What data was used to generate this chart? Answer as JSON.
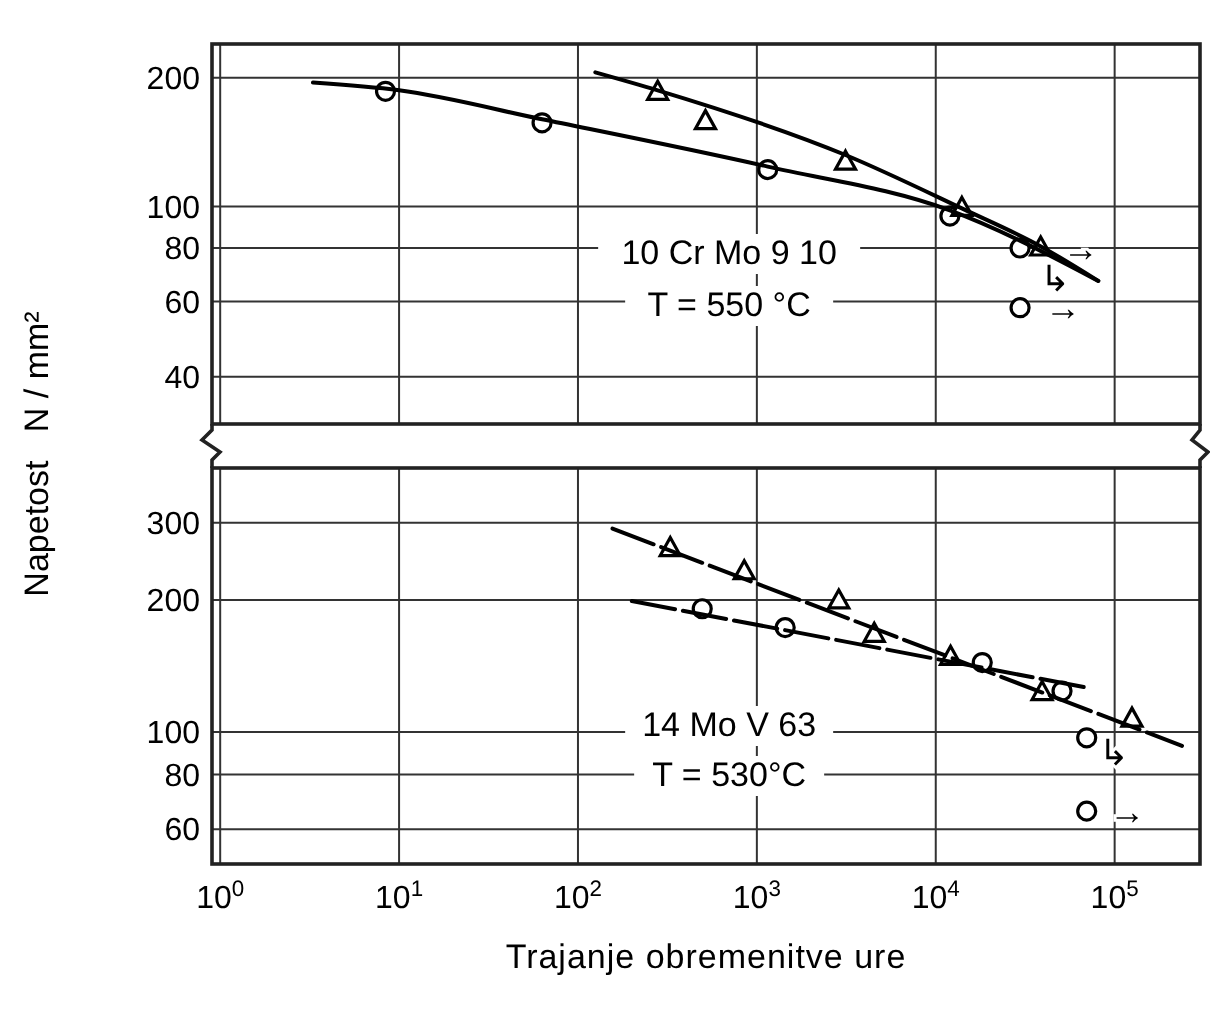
{
  "chart_data": [
    {
      "type": "scatter",
      "ylabel": "Napetost   N / mm²",
      "xlim": [
        0.9,
        300000
      ],
      "xticks": [
        {
          "value": 1,
          "label": null
        },
        {
          "value": 10,
          "label": null
        },
        {
          "value": 100,
          "label": null
        },
        {
          "value": 1000,
          "label": null
        },
        {
          "value": 10000,
          "label": null
        },
        {
          "value": 100000,
          "label": null
        }
      ],
      "ylim": [
        31,
        240
      ],
      "yticks": [
        40,
        60,
        80,
        100,
        200
      ],
      "log": "xy",
      "grid": true,
      "tick_labels": "y",
      "annotations": [
        "10 Cr Mo 9 10",
        "T = 550 °C",
        {
          "text": "→",
          "x": 44000,
          "y": 80
        },
        "↳",
        {
          "text": "→",
          "x": 35000,
          "y": 58
        }
      ],
      "series": [
        {
          "type": "scatter",
          "marker": "circle",
          "color": "#000000",
          "x": [
            8.4,
            63,
            1150,
            12000,
            29600,
            29600
          ],
          "values": [
            186,
            157,
            122,
            95,
            80,
            58
          ]
        },
        {
          "type": "scatter",
          "marker": "triangle",
          "color": "#000000",
          "x": [
            279,
            516,
            3130,
            14000,
            38600
          ],
          "values": [
            185,
            158,
            127,
            99,
            80
          ]
        },
        {
          "type": "line",
          "marker": "none",
          "line_style": "solid",
          "color": "#000000",
          "x": [
            3.3,
            10,
            63,
            1150,
            12000,
            81000
          ],
          "values": [
            195,
            187,
            160,
            124,
            98,
            67
          ]
        },
        {
          "type": "line",
          "marker": "none",
          "line_style": "solid",
          "color": "#000000",
          "x": [
            125,
            279,
            3130,
            14000,
            38000,
            81000
          ],
          "values": [
            206,
            187,
            132,
            99,
            81,
            67
          ]
        }
      ]
    },
    {
      "type": "scatter",
      "xlabel": "Trajanje  obremenitve  ure",
      "xlim": [
        0.9,
        300000
      ],
      "xticks": [
        {
          "value": 1,
          "label": "10$^{0}$"
        },
        {
          "value": 10,
          "label": "10$^{1}$"
        },
        {
          "value": 100,
          "label": "10$^{2}$"
        },
        {
          "value": 1000,
          "label": "10$^{3}$"
        },
        {
          "value": 10000,
          "label": "10$^{4}$"
        },
        {
          "value": 100000,
          "label": "10$^{5}$"
        }
      ],
      "ylim": [
        50,
        400
      ],
      "yticks": [
        60,
        80,
        100,
        200,
        300
      ],
      "log": "xy",
      "grid": true,
      "annotations": [
        "14 Mo V 63",
        "T = 530°C",
        {
          "text": "↳",
          "x": 69800,
          "y": 90
        },
        {
          "text": "→",
          "x": 80000,
          "y": 66
        }
      ],
      "series": [
        {
          "type": "scatter",
          "marker": "circle",
          "color": "#000000",
          "x": [
            495,
            1440,
            18200,
            50800,
            69800,
            69800
          ],
          "values": [
            191,
            173,
            144,
            124,
            97,
            66
          ]
        },
        {
          "type": "scatter",
          "marker": "triangle",
          "color": "#000000",
          "x": [
            328,
            850,
            2870,
            4530,
            12100,
            39300,
            125000
          ],
          "values": [
            262,
            232,
            199,
            167,
            148,
            123,
            107
          ]
        },
        {
          "type": "line",
          "marker": "none",
          "line_style": "dashed",
          "color": "#000000",
          "x": [
            156,
            238000
          ],
          "values": [
            291,
            93
          ]
        },
        {
          "type": "line",
          "marker": "none",
          "line_style": "dashed",
          "color": "#000000",
          "x": [
            200,
            71600
          ],
          "values": [
            199,
            126
          ]
        }
      ]
    }
  ]
}
